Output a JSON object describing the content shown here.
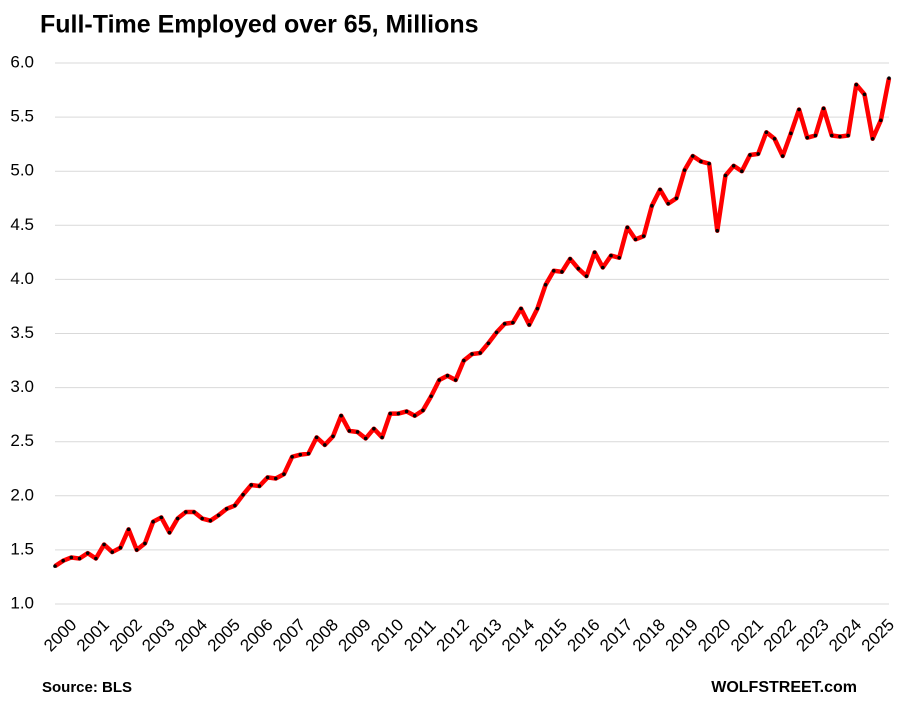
{
  "chart_data": {
    "type": "line",
    "title": "Full-Time Employed over 65, Millions",
    "source": "Source: BLS",
    "credit": "WOLFSTREET.com",
    "categories": [
      "2000",
      null,
      null,
      null,
      "2001",
      null,
      null,
      null,
      "2002",
      null,
      null,
      null,
      "2003",
      null,
      null,
      null,
      "2004",
      null,
      null,
      null,
      "2005",
      null,
      null,
      null,
      "2006",
      null,
      null,
      null,
      "2007",
      null,
      null,
      null,
      "2008",
      null,
      null,
      null,
      "2009",
      null,
      null,
      null,
      "2010",
      null,
      null,
      null,
      "2011",
      null,
      null,
      null,
      "2012",
      null,
      null,
      null,
      "2013",
      null,
      null,
      null,
      "2014",
      null,
      null,
      null,
      "2015",
      null,
      null,
      null,
      "2016",
      null,
      null,
      null,
      "2017",
      null,
      null,
      null,
      "2018",
      null,
      null,
      null,
      "2019",
      null,
      null,
      null,
      "2020",
      null,
      null,
      null,
      "2021",
      null,
      null,
      null,
      "2022",
      null,
      null,
      null,
      "2023",
      null,
      null,
      null,
      "2024",
      null,
      null,
      null,
      "2025",
      null,
      null
    ],
    "values": [
      1.35,
      1.4,
      1.43,
      1.42,
      1.47,
      1.42,
      1.55,
      1.48,
      1.52,
      1.69,
      1.5,
      1.56,
      1.76,
      1.8,
      1.66,
      1.79,
      1.85,
      1.85,
      1.79,
      1.77,
      1.82,
      1.88,
      1.91,
      2.01,
      2.1,
      2.09,
      2.17,
      2.16,
      2.2,
      2.36,
      2.38,
      2.39,
      2.54,
      2.47,
      2.55,
      2.74,
      2.6,
      2.59,
      2.53,
      2.62,
      2.54,
      2.76,
      2.76,
      2.78,
      2.74,
      2.79,
      2.92,
      3.07,
      3.11,
      3.07,
      3.25,
      3.31,
      3.32,
      3.41,
      3.51,
      3.59,
      3.6,
      3.73,
      3.58,
      3.73,
      3.95,
      4.08,
      4.07,
      4.19,
      4.1,
      4.03,
      4.25,
      4.11,
      4.22,
      4.2,
      4.48,
      4.37,
      4.4,
      4.68,
      4.83,
      4.7,
      4.75,
      5.01,
      5.14,
      5.09,
      5.07,
      4.45,
      4.96,
      5.05,
      5.0,
      5.15,
      5.16,
      5.36,
      5.3,
      5.14,
      5.35,
      5.57,
      5.31,
      5.33,
      5.58,
      5.33,
      5.32,
      5.33,
      5.8,
      5.71,
      5.3,
      5.47,
      5.86
    ],
    "color": "#ff0000",
    "marker_color": "#000000",
    "ylim": [
      1.0,
      6.0
    ],
    "yticks": [
      {
        "value": 1.0,
        "label": "1.0"
      },
      {
        "value": 1.5,
        "label": "1.5"
      },
      {
        "value": 2.0,
        "label": "2.0"
      },
      {
        "value": 2.5,
        "label": "2.5"
      },
      {
        "value": 3.0,
        "label": "3.0"
      },
      {
        "value": 3.5,
        "label": "3.5"
      },
      {
        "value": 4.0,
        "label": "4.0"
      },
      {
        "value": 4.5,
        "label": "4.5"
      },
      {
        "value": 5.0,
        "label": "5.0"
      },
      {
        "value": 5.5,
        "label": "5.5"
      },
      {
        "value": 6.0,
        "label": "6.0"
      }
    ],
    "grid": true
  }
}
